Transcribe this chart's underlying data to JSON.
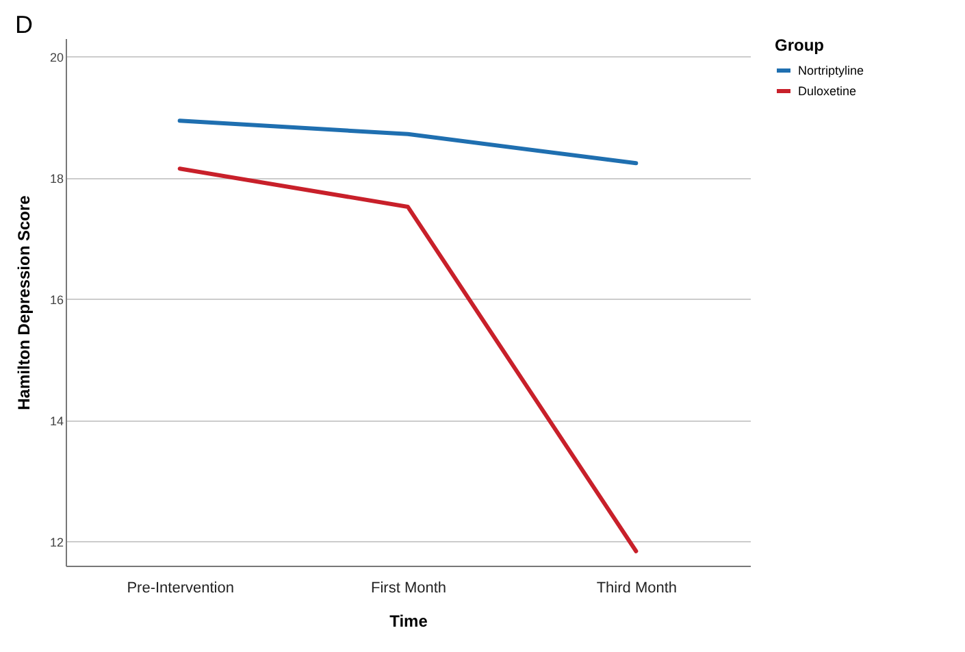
{
  "chart_data": {
    "type": "line",
    "title": "D",
    "xlabel": "Time",
    "ylabel": "Hamilton Depression Score",
    "legend_title": "Group",
    "categories": [
      "Pre-Intervention",
      "First Month",
      "Third Month"
    ],
    "series": [
      {
        "name": "Nortriptyline",
        "color": "#1f6fb0",
        "values": [
          18.94,
          18.72,
          18.24
        ]
      },
      {
        "name": "Duloxetine",
        "color": "#c8202a",
        "values": [
          18.15,
          17.52,
          11.84
        ]
      }
    ],
    "ylim": [
      11.6,
      20.3
    ],
    "yticks": [
      12,
      14,
      16,
      18,
      20
    ],
    "grid": "y",
    "legend": "top right",
    "marker": "none",
    "line_style": "solid"
  }
}
